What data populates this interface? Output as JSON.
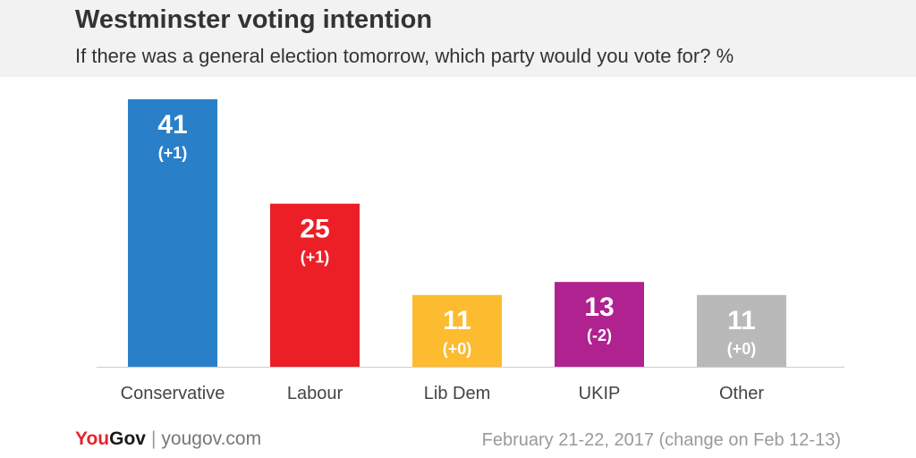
{
  "header": {
    "title": "Westminster voting intention",
    "subtitle": "If there was a general election tomorrow, which party would you vote for? %"
  },
  "chart_data": {
    "type": "bar",
    "title": "Westminster voting intention",
    "subtitle": "If there was a general election tomorrow, which party would you vote for? %",
    "xlabel": "",
    "ylabel": "",
    "ylim": [
      0,
      41
    ],
    "grid": false,
    "categories": [
      "Conservative",
      "Labour",
      "Lib Dem",
      "UKIP",
      "Other"
    ],
    "values": [
      41,
      25,
      11,
      13,
      11
    ],
    "changes": [
      "(+1)",
      "(+1)",
      "(+0)",
      "(-2)",
      "(+0)"
    ],
    "colors": [
      "#2a7fc9",
      "#ec1f27",
      "#fdbb30",
      "#b0228f",
      "#b9b9b9"
    ]
  },
  "footer": {
    "brand_you": "You",
    "brand_gov": "Gov",
    "brand_separator": "|",
    "brand_url": "yougov.com",
    "note": "February 21-22, 2017 (change on Feb 12-13)"
  }
}
